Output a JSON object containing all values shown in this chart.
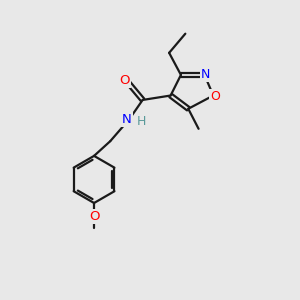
{
  "bg_color": "#e8e8e8",
  "bond_color": "#1a1a1a",
  "atom_colors": {
    "O": "#ff0000",
    "N": "#0000ff",
    "H": "#5a9a9a",
    "C": "#1a1a1a"
  }
}
